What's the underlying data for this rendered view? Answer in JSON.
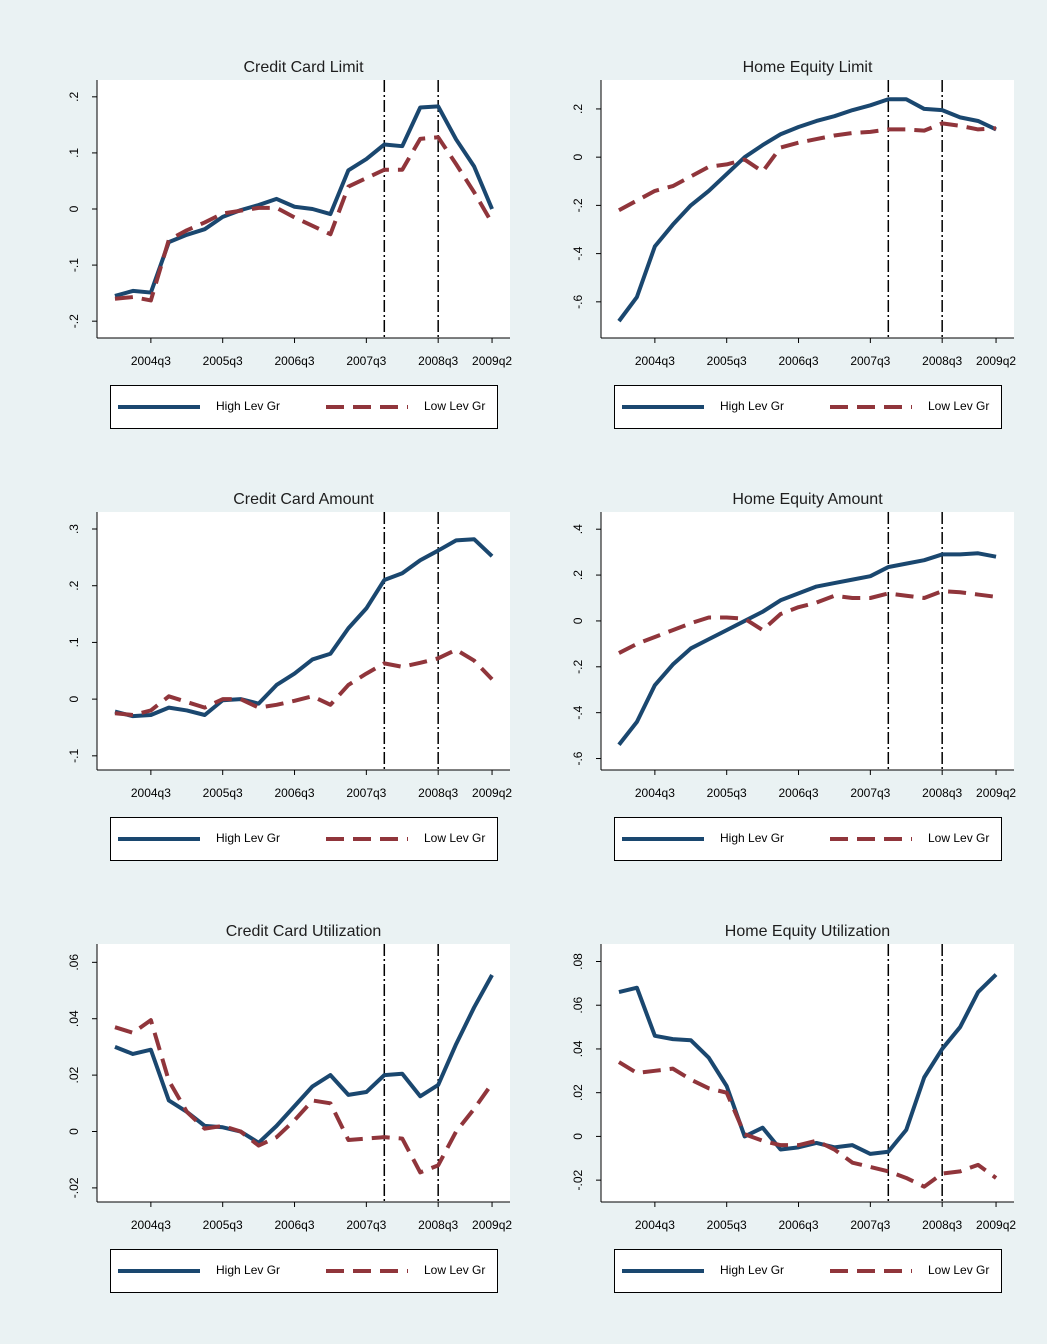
{
  "chart_data": [
    {
      "type": "line",
      "title": "Credit Card Limit",
      "x": [
        2004.0,
        2004.25,
        2004.5,
        2004.75,
        2005.0,
        2005.25,
        2005.5,
        2005.75,
        2006.0,
        2006.25,
        2006.5,
        2006.75,
        2007.0,
        2007.25,
        2007.5,
        2007.75,
        2008.0,
        2008.25,
        2008.5,
        2008.75,
        2009.0,
        2009.25
      ],
      "xlim": [
        2003.75,
        2009.5
      ],
      "xticks": [
        {
          "value": 2004.5,
          "label": "2004q3"
        },
        {
          "value": 2005.5,
          "label": "2005q3"
        },
        {
          "value": 2006.5,
          "label": "2006q3"
        },
        {
          "value": 2007.5,
          "label": "2007q3"
        },
        {
          "value": 2008.5,
          "label": "2008q3"
        },
        {
          "value": 2009.25,
          "label": "2009q2"
        }
      ],
      "xlines": [
        2007.75,
        2008.5
      ],
      "ylim": [
        -0.23,
        0.23
      ],
      "yticks": [
        {
          "value": -0.2,
          "label": "-.2"
        },
        {
          "value": -0.1,
          "label": "-.1"
        },
        0,
        {
          "value": 0.1,
          "label": ".1"
        },
        {
          "value": 0.2,
          "label": ".2"
        }
      ],
      "legend": "bottom",
      "series": [
        {
          "name": "High Lev Gr",
          "color": "#1a476f",
          "values": [
            -0.155,
            -0.146,
            -0.149,
            -0.059,
            -0.046,
            -0.036,
            -0.014,
            -0.002,
            0.007,
            0.018,
            0.004,
            0.0,
            -0.009,
            0.069,
            0.089,
            0.115,
            0.112,
            0.181,
            0.183,
            0.124,
            0.076,
            0.0
          ]
        },
        {
          "name": "Low Lev Gr",
          "color": "#90353b",
          "values": [
            -0.16,
            -0.157,
            -0.163,
            -0.055,
            -0.038,
            -0.024,
            -0.008,
            -0.003,
            0.002,
            0.002,
            -0.015,
            -0.03,
            -0.045,
            0.04,
            0.055,
            0.07,
            0.07,
            0.125,
            0.128,
            0.08,
            0.03,
            -0.025
          ]
        }
      ]
    },
    {
      "type": "line",
      "title": "Home Equity Limit",
      "x": [
        2004.0,
        2004.25,
        2004.5,
        2004.75,
        2005.0,
        2005.25,
        2005.5,
        2005.75,
        2006.0,
        2006.25,
        2006.5,
        2006.75,
        2007.0,
        2007.25,
        2007.5,
        2007.75,
        2008.0,
        2008.25,
        2008.5,
        2008.75,
        2009.0,
        2009.25
      ],
      "xlim": [
        2003.75,
        2009.5
      ],
      "xticks": [
        {
          "value": 2004.5,
          "label": "2004q3"
        },
        {
          "value": 2005.5,
          "label": "2005q3"
        },
        {
          "value": 2006.5,
          "label": "2006q3"
        },
        {
          "value": 2007.5,
          "label": "2007q3"
        },
        {
          "value": 2008.5,
          "label": "2008q3"
        },
        {
          "value": 2009.25,
          "label": "2009q2"
        }
      ],
      "xlines": [
        2007.75,
        2008.5
      ],
      "ylim": [
        -0.75,
        0.32
      ],
      "yticks": [
        {
          "value": -0.6,
          "label": "-.6"
        },
        {
          "value": -0.4,
          "label": "-.4"
        },
        {
          "value": -0.2,
          "label": "-.2"
        },
        0,
        {
          "value": 0.2,
          "label": ".2"
        }
      ],
      "legend": "bottom",
      "series": [
        {
          "name": "High Lev Gr",
          "color": "#1a476f",
          "values": [
            -0.68,
            -0.58,
            -0.37,
            -0.28,
            -0.2,
            -0.14,
            -0.07,
            0.0,
            0.05,
            0.095,
            0.125,
            0.15,
            0.17,
            0.195,
            0.215,
            0.24,
            0.24,
            0.2,
            0.195,
            0.165,
            0.15,
            0.115
          ]
        },
        {
          "name": "Low Lev Gr",
          "color": "#90353b",
          "values": [
            -0.22,
            -0.18,
            -0.14,
            -0.12,
            -0.08,
            -0.04,
            -0.03,
            -0.01,
            -0.06,
            0.04,
            0.06,
            0.075,
            0.09,
            0.1,
            0.105,
            0.115,
            0.115,
            0.11,
            0.14,
            0.13,
            0.115,
            0.12
          ]
        }
      ]
    },
    {
      "type": "line",
      "title": "Credit Card Amount",
      "x": [
        2004.0,
        2004.25,
        2004.5,
        2004.75,
        2005.0,
        2005.25,
        2005.5,
        2005.75,
        2006.0,
        2006.25,
        2006.5,
        2006.75,
        2007.0,
        2007.25,
        2007.5,
        2007.75,
        2008.0,
        2008.25,
        2008.5,
        2008.75,
        2009.0,
        2009.25
      ],
      "xlim": [
        2003.75,
        2009.5
      ],
      "xticks": [
        {
          "value": 2004.5,
          "label": "2004q3"
        },
        {
          "value": 2005.5,
          "label": "2005q3"
        },
        {
          "value": 2006.5,
          "label": "2006q3"
        },
        {
          "value": 2007.5,
          "label": "2007q3"
        },
        {
          "value": 2008.5,
          "label": "2008q3"
        },
        {
          "value": 2009.25,
          "label": "2009q2"
        }
      ],
      "xlines": [
        2007.75,
        2008.5
      ],
      "ylim": [
        -0.125,
        0.33
      ],
      "yticks": [
        {
          "value": -0.1,
          "label": "-.1"
        },
        0,
        {
          "value": 0.1,
          "label": ".1"
        },
        {
          "value": 0.2,
          "label": ".2"
        },
        {
          "value": 0.3,
          "label": ".3"
        }
      ],
      "legend": "bottom",
      "series": [
        {
          "name": "High Lev Gr",
          "color": "#1a476f",
          "values": [
            -0.022,
            -0.03,
            -0.028,
            -0.015,
            -0.02,
            -0.028,
            -0.002,
            0.0,
            -0.008,
            0.025,
            0.045,
            0.07,
            0.08,
            0.125,
            0.16,
            0.21,
            0.222,
            0.245,
            0.262,
            0.28,
            0.282,
            0.252
          ]
        },
        {
          "name": "Low Lev Gr",
          "color": "#90353b",
          "values": [
            -0.025,
            -0.028,
            -0.02,
            0.005,
            -0.005,
            -0.015,
            0.0,
            0.0,
            -0.015,
            -0.01,
            -0.003,
            0.005,
            -0.01,
            0.025,
            0.045,
            0.063,
            0.057,
            0.064,
            0.072,
            0.087,
            0.068,
            0.035
          ]
        }
      ]
    },
    {
      "type": "line",
      "title": "Home Equity Amount",
      "x": [
        2004.0,
        2004.25,
        2004.5,
        2004.75,
        2005.0,
        2005.25,
        2005.5,
        2005.75,
        2006.0,
        2006.25,
        2006.5,
        2006.75,
        2007.0,
        2007.25,
        2007.5,
        2007.75,
        2008.0,
        2008.25,
        2008.5,
        2008.75,
        2009.0,
        2009.25
      ],
      "xlim": [
        2003.75,
        2009.5
      ],
      "xticks": [
        {
          "value": 2004.5,
          "label": "2004q3"
        },
        {
          "value": 2005.5,
          "label": "2005q3"
        },
        {
          "value": 2006.5,
          "label": "2006q3"
        },
        {
          "value": 2007.5,
          "label": "2007q3"
        },
        {
          "value": 2008.5,
          "label": "2008q3"
        },
        {
          "value": 2009.25,
          "label": "2009q2"
        }
      ],
      "xlines": [
        2007.75,
        2008.5
      ],
      "ylim": [
        -0.65,
        0.475
      ],
      "yticks": [
        {
          "value": -0.6,
          "label": "-.6"
        },
        {
          "value": -0.4,
          "label": "-.4"
        },
        {
          "value": -0.2,
          "label": "-.2"
        },
        0,
        {
          "value": 0.2,
          "label": ".2"
        },
        {
          "value": 0.4,
          "label": ".4"
        }
      ],
      "legend": "bottom",
      "series": [
        {
          "name": "High Lev Gr",
          "color": "#1a476f",
          "values": [
            -0.54,
            -0.44,
            -0.28,
            -0.19,
            -0.12,
            -0.08,
            -0.04,
            0.0,
            0.04,
            0.09,
            0.12,
            0.15,
            0.165,
            0.18,
            0.195,
            0.235,
            0.25,
            0.265,
            0.29,
            0.29,
            0.295,
            0.28
          ]
        },
        {
          "name": "Low Lev Gr",
          "color": "#90353b",
          "values": [
            -0.14,
            -0.1,
            -0.07,
            -0.04,
            -0.01,
            0.015,
            0.015,
            0.01,
            -0.04,
            0.03,
            0.06,
            0.08,
            0.11,
            0.1,
            0.1,
            0.12,
            0.11,
            0.1,
            0.13,
            0.125,
            0.115,
            0.105
          ]
        }
      ]
    },
    {
      "type": "line",
      "title": "Credit Card Utilization",
      "x": [
        2004.0,
        2004.25,
        2004.5,
        2004.75,
        2005.0,
        2005.25,
        2005.5,
        2005.75,
        2006.0,
        2006.25,
        2006.5,
        2006.75,
        2007.0,
        2007.25,
        2007.5,
        2007.75,
        2008.0,
        2008.25,
        2008.5,
        2008.75,
        2009.0,
        2009.25
      ],
      "xlim": [
        2003.75,
        2009.5
      ],
      "xticks": [
        {
          "value": 2004.5,
          "label": "2004q3"
        },
        {
          "value": 2005.5,
          "label": "2005q3"
        },
        {
          "value": 2006.5,
          "label": "2006q3"
        },
        {
          "value": 2007.5,
          "label": "2007q3"
        },
        {
          "value": 2008.5,
          "label": "2008q3"
        },
        {
          "value": 2009.25,
          "label": "2009q2"
        }
      ],
      "xlines": [
        2007.75,
        2008.5
      ],
      "ylim": [
        -0.025,
        0.0665
      ],
      "yticks": [
        {
          "value": -0.02,
          "label": "-.02"
        },
        0,
        {
          "value": 0.02,
          "label": ".02"
        },
        {
          "value": 0.04,
          "label": ".04"
        },
        {
          "value": 0.06,
          "label": ".06"
        }
      ],
      "legend": "bottom",
      "series": [
        {
          "name": "High Lev Gr",
          "color": "#1a476f",
          "values": [
            0.03,
            0.0275,
            0.029,
            0.011,
            0.007,
            0.002,
            0.0015,
            0.0,
            -0.004,
            0.002,
            0.009,
            0.016,
            0.02,
            0.013,
            0.014,
            0.02,
            0.0205,
            0.0125,
            0.0165,
            0.031,
            0.044,
            0.0555
          ]
        },
        {
          "name": "Low Lev Gr",
          "color": "#90353b",
          "values": [
            0.037,
            0.035,
            0.0395,
            0.018,
            0.007,
            0.001,
            0.002,
            0.0,
            -0.005,
            -0.002,
            0.004,
            0.011,
            0.01,
            -0.003,
            -0.0025,
            -0.002,
            -0.0025,
            -0.0145,
            -0.012,
            0.0,
            0.008,
            0.017
          ]
        }
      ]
    },
    {
      "type": "line",
      "title": "Home Equity Utilization",
      "x": [
        2004.0,
        2004.25,
        2004.5,
        2004.75,
        2005.0,
        2005.25,
        2005.5,
        2005.75,
        2006.0,
        2006.25,
        2006.5,
        2006.75,
        2007.0,
        2007.25,
        2007.5,
        2007.75,
        2008.0,
        2008.25,
        2008.5,
        2008.75,
        2009.0,
        2009.25
      ],
      "xlim": [
        2003.75,
        2009.5
      ],
      "xticks": [
        {
          "value": 2004.5,
          "label": "2004q3"
        },
        {
          "value": 2005.5,
          "label": "2005q3"
        },
        {
          "value": 2006.5,
          "label": "2006q3"
        },
        {
          "value": 2007.5,
          "label": "2007q3"
        },
        {
          "value": 2008.5,
          "label": "2008q3"
        },
        {
          "value": 2009.25,
          "label": "2009q2"
        }
      ],
      "xlines": [
        2007.75,
        2008.5
      ],
      "ylim": [
        -0.03,
        0.088
      ],
      "yticks": [
        {
          "value": -0.02,
          "label": "-.02"
        },
        0,
        {
          "value": 0.02,
          "label": ".02"
        },
        {
          "value": 0.04,
          "label": ".04"
        },
        {
          "value": 0.06,
          "label": ".06"
        },
        {
          "value": 0.08,
          "label": ".08"
        }
      ],
      "legend": "bottom",
      "series": [
        {
          "name": "High Lev Gr",
          "color": "#1a476f",
          "values": [
            0.066,
            0.068,
            0.046,
            0.0445,
            0.044,
            0.036,
            0.023,
            0.0,
            0.004,
            -0.006,
            -0.005,
            -0.003,
            -0.005,
            -0.004,
            -0.008,
            -0.007,
            0.003,
            0.027,
            0.04,
            0.05,
            0.066,
            0.074
          ]
        },
        {
          "name": "Low Lev Gr",
          "color": "#90353b",
          "values": [
            0.034,
            0.029,
            0.03,
            0.031,
            0.026,
            0.022,
            0.02,
            0.001,
            -0.002,
            -0.004,
            -0.004,
            -0.002,
            -0.006,
            -0.012,
            -0.014,
            -0.016,
            -0.019,
            -0.023,
            -0.017,
            -0.016,
            -0.013,
            -0.019
          ]
        }
      ]
    }
  ]
}
